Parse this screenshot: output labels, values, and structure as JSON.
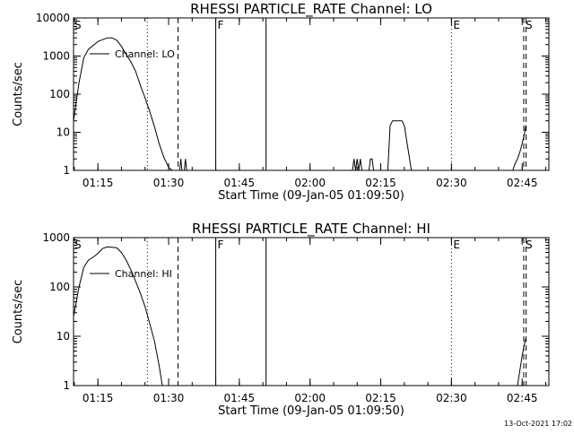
{
  "footer": {
    "timestamp": "13-Oct-2021 17:02"
  },
  "chart_data": [
    {
      "type": "line",
      "title": "RHESSI PARTICLE_RATE Channel: LO",
      "xlabel": "Start Time (09-Jan-05 01:09:50)",
      "ylabel": "Counts/sec",
      "yscale": "log",
      "xlim": [
        "01:09:50",
        "02:50:40"
      ],
      "ylim": [
        1,
        10000
      ],
      "xticks": [
        "01:15",
        "01:30",
        "01:45",
        "02:00",
        "02:15",
        "02:30",
        "02:45"
      ],
      "yticks": [
        "1",
        "10",
        "100",
        "1000",
        "10000"
      ],
      "legend": {
        "placement": "top-left",
        "entries": [
          "Channel: LO"
        ]
      },
      "series": [
        {
          "name": "Channel: LO",
          "x": [
            "01:09:50",
            "01:11:00",
            "01:12:00",
            "01:13:00",
            "01:14:00",
            "01:15:00",
            "01:16:00",
            "01:17:00",
            "01:18:00",
            "01:19:00",
            "01:20:00",
            "01:21:00",
            "01:22:00",
            "01:23:00",
            "01:24:00",
            "01:25:00",
            "01:26:00",
            "01:27:00",
            "01:28:00",
            "01:29:00",
            "01:30:00",
            "01:30:45",
            "01:31:20",
            "01:32:20",
            "01:32:35",
            "01:32:50",
            "01:33:05",
            "01:33:20",
            "01:33:35",
            "01:33:50",
            "02:09:00",
            "02:09:20",
            "02:09:40",
            "02:10:00",
            "02:10:20",
            "02:10:40",
            "02:11:00",
            "02:12:30",
            "02:12:50",
            "02:13:10",
            "02:13:30",
            "02:16:30",
            "02:17:00",
            "02:17:30",
            "02:19:30",
            "02:20:00",
            "02:21:30",
            "02:43:00",
            "02:43:30",
            "02:44:00",
            "02:44:30",
            "02:45:00",
            "02:45:30",
            "02:45:45"
          ],
          "values": [
            20,
            200,
            900,
            1500,
            1900,
            2400,
            2700,
            3000,
            3000,
            2600,
            1800,
            1100,
            700,
            400,
            170,
            80,
            35,
            14,
            5,
            2.2,
            1.2,
            1,
            null,
            1,
            2,
            1,
            null,
            1,
            2,
            1,
            1,
            2,
            1,
            2,
            1,
            2,
            1,
            1,
            2,
            2,
            1,
            1,
            15,
            20,
            20,
            15,
            1,
            1,
            1.5,
            2,
            3,
            5,
            9,
            15
          ]
        }
      ],
      "markers": [
        {
          "type": "dotted",
          "x": "01:25:30",
          "label": ""
        },
        {
          "type": "dashed",
          "x": "01:32:00",
          "label": ""
        },
        {
          "type": "solid",
          "x": "01:40:00",
          "label": "F"
        },
        {
          "type": "solid",
          "x": "01:50:40",
          "label": ""
        },
        {
          "type": "dotted",
          "x": "02:30:00",
          "label": "E"
        },
        {
          "type": "dashed",
          "x": "02:45:20",
          "label": "S"
        },
        {
          "type": "dashed",
          "x": "02:45:50",
          "label": ""
        }
      ],
      "corner_label": "S"
    },
    {
      "type": "line",
      "title": "RHESSI PARTICLE_RATE Channel: HI",
      "xlabel": "Start Time (09-Jan-05 01:09:50)",
      "ylabel": "Counts/sec",
      "yscale": "log",
      "xlim": [
        "01:09:50",
        "02:50:40"
      ],
      "ylim": [
        1,
        1000
      ],
      "xticks": [
        "01:15",
        "01:30",
        "01:45",
        "02:00",
        "02:15",
        "02:30",
        "02:45"
      ],
      "yticks": [
        "1",
        "10",
        "100",
        "1000"
      ],
      "legend": {
        "placement": "top-left",
        "entries": [
          "Channel: HI"
        ]
      },
      "series": [
        {
          "name": "Channel: HI",
          "x": [
            "01:09:50",
            "01:11:00",
            "01:12:00",
            "01:13:00",
            "01:14:00",
            "01:15:00",
            "01:16:00",
            "01:17:00",
            "01:18:00",
            "01:19:00",
            "01:20:00",
            "01:21:00",
            "01:22:00",
            "01:23:00",
            "01:24:00",
            "01:25:00",
            "01:26:00",
            "01:27:00",
            "01:28:00",
            "01:28:40",
            "02:44:00",
            "02:44:30",
            "02:45:00",
            "02:45:30",
            "02:45:45"
          ],
          "values": [
            25,
            100,
            250,
            350,
            400,
            480,
            600,
            650,
            640,
            620,
            500,
            350,
            220,
            130,
            75,
            40,
            18,
            8,
            2.5,
            1,
            1,
            2,
            4,
            7,
            9
          ]
        }
      ],
      "markers": [
        {
          "type": "dotted",
          "x": "01:25:30",
          "label": ""
        },
        {
          "type": "dashed",
          "x": "01:32:00",
          "label": ""
        },
        {
          "type": "solid",
          "x": "01:40:00",
          "label": "F"
        },
        {
          "type": "solid",
          "x": "01:50:40",
          "label": ""
        },
        {
          "type": "dotted",
          "x": "02:30:00",
          "label": "E"
        },
        {
          "type": "dashed",
          "x": "02:45:20",
          "label": "S"
        },
        {
          "type": "dashed",
          "x": "02:45:50",
          "label": ""
        }
      ],
      "corner_label": "S"
    }
  ]
}
